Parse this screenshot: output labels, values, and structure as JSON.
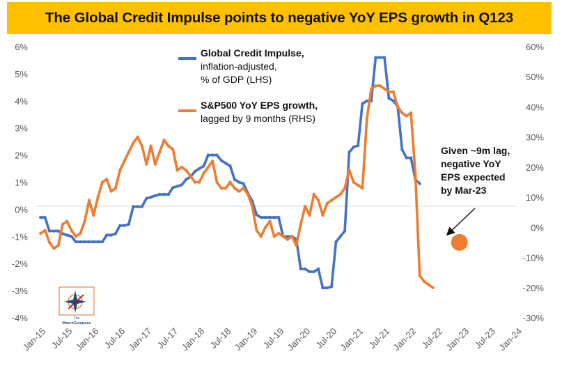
{
  "title": "The Global Credit Impulse points to negative YoY EPS growth in Q123",
  "logo": {
    "line1": "The",
    "line2": "MacroCompass"
  },
  "chart_data": {
    "type": "line",
    "title": "The Global Credit Impulse points to negative YoY EPS growth in Q123",
    "x_tick_labels": [
      "Jan-15",
      "Jul-15",
      "Jan-16",
      "Jul-16",
      "Jan-17",
      "Jul-17",
      "Jan-18",
      "Jul-18",
      "Jan-19",
      "Jul-19",
      "Jan-20",
      "Jul-20",
      "Jan-21",
      "Jul-21",
      "Jan-22",
      "Jul-22",
      "Jan-23",
      "Jul-23",
      "Jan-24"
    ],
    "y_left_ticks": [
      "6%",
      "5%",
      "4%",
      "3%",
      "2%",
      "1%",
      "0%",
      "-1%",
      "-2%",
      "-3%",
      "-4%"
    ],
    "y_right_ticks": [
      "60%",
      "50%",
      "40%",
      "30%",
      "20%",
      "10%",
      "0%",
      "-10%",
      "-20%",
      "-30%"
    ],
    "ylim_left": [
      -4,
      6
    ],
    "ylim_right": [
      -30,
      60
    ],
    "xlim": [
      "2014-12",
      "2024-01"
    ],
    "grid": false,
    "legend_position": "top-center",
    "series": [
      {
        "name": "Global Credit Impulse, inflation-adjusted, % of GDP (LHS)",
        "legend_lines": [
          "Global Credit Impulse,",
          "inflation-adjusted,",
          "% of GDP (LHS)"
        ],
        "axis": "left",
        "color": "#4472C4",
        "points": [
          [
            "2015-01",
            -0.3
          ],
          [
            "2015-02",
            -0.3
          ],
          [
            "2015-03",
            -0.8
          ],
          [
            "2015-04",
            -0.8
          ],
          [
            "2015-05",
            -0.8
          ],
          [
            "2015-06",
            -0.9
          ],
          [
            "2015-07",
            -0.95
          ],
          [
            "2015-08",
            -1.0
          ],
          [
            "2015-09",
            -1.2
          ],
          [
            "2015-10",
            -1.2
          ],
          [
            "2015-11",
            -1.2
          ],
          [
            "2015-12",
            -1.2
          ],
          [
            "2016-01",
            -1.2
          ],
          [
            "2016-02",
            -1.2
          ],
          [
            "2016-03",
            -1.2
          ],
          [
            "2016-04",
            -0.95
          ],
          [
            "2016-05",
            -0.95
          ],
          [
            "2016-06",
            -0.9
          ],
          [
            "2016-07",
            -0.6
          ],
          [
            "2016-08",
            -0.6
          ],
          [
            "2016-09",
            -0.55
          ],
          [
            "2016-10",
            0.1
          ],
          [
            "2016-11",
            0.1
          ],
          [
            "2016-12",
            0.1
          ],
          [
            "2017-01",
            0.4
          ],
          [
            "2017-02",
            0.45
          ],
          [
            "2017-03",
            0.5
          ],
          [
            "2017-04",
            0.55
          ],
          [
            "2017-05",
            0.55
          ],
          [
            "2017-06",
            0.55
          ],
          [
            "2017-07",
            0.8
          ],
          [
            "2017-08",
            0.85
          ],
          [
            "2017-09",
            0.9
          ],
          [
            "2017-10",
            1.1
          ],
          [
            "2017-11",
            1.2
          ],
          [
            "2017-12",
            1.4
          ],
          [
            "2018-01",
            1.5
          ],
          [
            "2018-02",
            1.6
          ],
          [
            "2018-03",
            2.0
          ],
          [
            "2018-04",
            2.0
          ],
          [
            "2018-05",
            2.0
          ],
          [
            "2018-06",
            1.8
          ],
          [
            "2018-07",
            1.7
          ],
          [
            "2018-08",
            1.6
          ],
          [
            "2018-09",
            1.1
          ],
          [
            "2018-10",
            1.0
          ],
          [
            "2018-11",
            0.95
          ],
          [
            "2018-12",
            0.6
          ],
          [
            "2019-01",
            0.3
          ],
          [
            "2019-02",
            -0.2
          ],
          [
            "2019-03",
            -0.3
          ],
          [
            "2019-04",
            -0.3
          ],
          [
            "2019-05",
            -0.3
          ],
          [
            "2019-06",
            -0.3
          ],
          [
            "2019-07",
            -0.3
          ],
          [
            "2019-08",
            -1.0
          ],
          [
            "2019-09",
            -1.0
          ],
          [
            "2019-10",
            -1.0
          ],
          [
            "2019-11",
            -1.1
          ],
          [
            "2019-12",
            -2.2
          ],
          [
            "2020-01",
            -2.2
          ],
          [
            "2020-02",
            -2.3
          ],
          [
            "2020-03",
            -2.3
          ],
          [
            "2020-04",
            -2.2
          ],
          [
            "2020-05",
            -2.9
          ],
          [
            "2020-06",
            -2.9
          ],
          [
            "2020-07",
            -2.85
          ],
          [
            "2020-08",
            -1.2
          ],
          [
            "2020-09",
            -1.0
          ],
          [
            "2020-10",
            -0.8
          ],
          [
            "2020-11",
            2.1
          ],
          [
            "2020-12",
            2.3
          ],
          [
            "2021-01",
            2.35
          ],
          [
            "2021-02",
            3.9
          ],
          [
            "2021-03",
            4.0
          ],
          [
            "2021-04",
            4.0
          ],
          [
            "2021-05",
            5.6
          ],
          [
            "2021-06",
            5.6
          ],
          [
            "2021-07",
            5.6
          ],
          [
            "2021-08",
            4.1
          ],
          [
            "2021-09",
            4.0
          ],
          [
            "2021-10",
            3.8
          ],
          [
            "2021-11",
            2.2
          ],
          [
            "2021-12",
            1.9
          ],
          [
            "2022-01",
            1.9
          ],
          [
            "2022-02",
            1.1
          ],
          [
            "2022-03",
            0.95
          ]
        ]
      },
      {
        "name": "S&P500 YoY EPS growth, lagged by 9 months (RHS)",
        "legend_lines": [
          "S&P500 YoY EPS growth,",
          "lagged by 9 months (RHS)"
        ],
        "axis": "right",
        "color": "#ED7D31",
        "points": [
          [
            "2015-01",
            -2
          ],
          [
            "2015-02",
            -1
          ],
          [
            "2015-03",
            -5
          ],
          [
            "2015-04",
            -7
          ],
          [
            "2015-05",
            -6
          ],
          [
            "2015-06",
            1
          ],
          [
            "2015-07",
            2
          ],
          [
            "2015-08",
            -1
          ],
          [
            "2015-09",
            -3
          ],
          [
            "2015-10",
            -2
          ],
          [
            "2015-11",
            2
          ],
          [
            "2015-12",
            9
          ],
          [
            "2016-01",
            4
          ],
          [
            "2016-02",
            10
          ],
          [
            "2016-03",
            15
          ],
          [
            "2016-04",
            16
          ],
          [
            "2016-05",
            12
          ],
          [
            "2016-06",
            13
          ],
          [
            "2016-07",
            19
          ],
          [
            "2016-08",
            22
          ],
          [
            "2016-09",
            25
          ],
          [
            "2016-10",
            28
          ],
          [
            "2016-11",
            30
          ],
          [
            "2016-12",
            27
          ],
          [
            "2017-01",
            21
          ],
          [
            "2017-02",
            27
          ],
          [
            "2017-03",
            21
          ],
          [
            "2017-04",
            25
          ],
          [
            "2017-05",
            29
          ],
          [
            "2017-06",
            27
          ],
          [
            "2017-07",
            26
          ],
          [
            "2017-08",
            19
          ],
          [
            "2017-09",
            20
          ],
          [
            "2017-10",
            19
          ],
          [
            "2017-11",
            17
          ],
          [
            "2017-12",
            15
          ],
          [
            "2018-01",
            15
          ],
          [
            "2018-02",
            18
          ],
          [
            "2018-03",
            20
          ],
          [
            "2018-04",
            22
          ],
          [
            "2018-05",
            15
          ],
          [
            "2018-06",
            13
          ],
          [
            "2018-07",
            13
          ],
          [
            "2018-08",
            15
          ],
          [
            "2018-09",
            13
          ],
          [
            "2018-10",
            12
          ],
          [
            "2018-11",
            13
          ],
          [
            "2018-12",
            11
          ],
          [
            "2019-01",
            7
          ],
          [
            "2019-02",
            -1
          ],
          [
            "2019-03",
            -3
          ],
          [
            "2019-04",
            0
          ],
          [
            "2019-05",
            2
          ],
          [
            "2019-06",
            -3
          ],
          [
            "2019-07",
            -2
          ],
          [
            "2019-08",
            -3
          ],
          [
            "2019-09",
            -4
          ],
          [
            "2019-10",
            -3
          ],
          [
            "2019-11",
            -6
          ],
          [
            "2019-12",
            1
          ],
          [
            "2020-01",
            7
          ],
          [
            "2020-02",
            4
          ],
          [
            "2020-03",
            11
          ],
          [
            "2020-04",
            9
          ],
          [
            "2020-05",
            4
          ],
          [
            "2020-06",
            8
          ],
          [
            "2020-07",
            9
          ],
          [
            "2020-08",
            10
          ],
          [
            "2020-09",
            11
          ],
          [
            "2020-10",
            13
          ],
          [
            "2020-11",
            19
          ],
          [
            "2020-12",
            15
          ],
          [
            "2021-01",
            14
          ],
          [
            "2021-02",
            13
          ],
          [
            "2021-03",
            36
          ],
          [
            "2021-04",
            46
          ],
          [
            "2021-05",
            47
          ],
          [
            "2021-06",
            47
          ],
          [
            "2021-07",
            46
          ],
          [
            "2021-08",
            45
          ],
          [
            "2021-09",
            45
          ],
          [
            "2021-10",
            40
          ],
          [
            "2021-11",
            38
          ],
          [
            "2021-12",
            37
          ],
          [
            "2022-01",
            38
          ],
          [
            "2022-02",
            18
          ],
          [
            "2022-03",
            -16
          ],
          [
            "2022-04",
            -18
          ],
          [
            "2022-05",
            -19
          ],
          [
            "2022-06",
            -20
          ]
        ]
      }
    ],
    "expected_point": {
      "x": "2022-12",
      "y": -5,
      "axis": "right",
      "color": "#ED7D31"
    },
    "annotation": {
      "lines": [
        "Given ~9m lag,",
        "negative YoY",
        "EPS expected",
        "by Mar-23"
      ]
    }
  }
}
